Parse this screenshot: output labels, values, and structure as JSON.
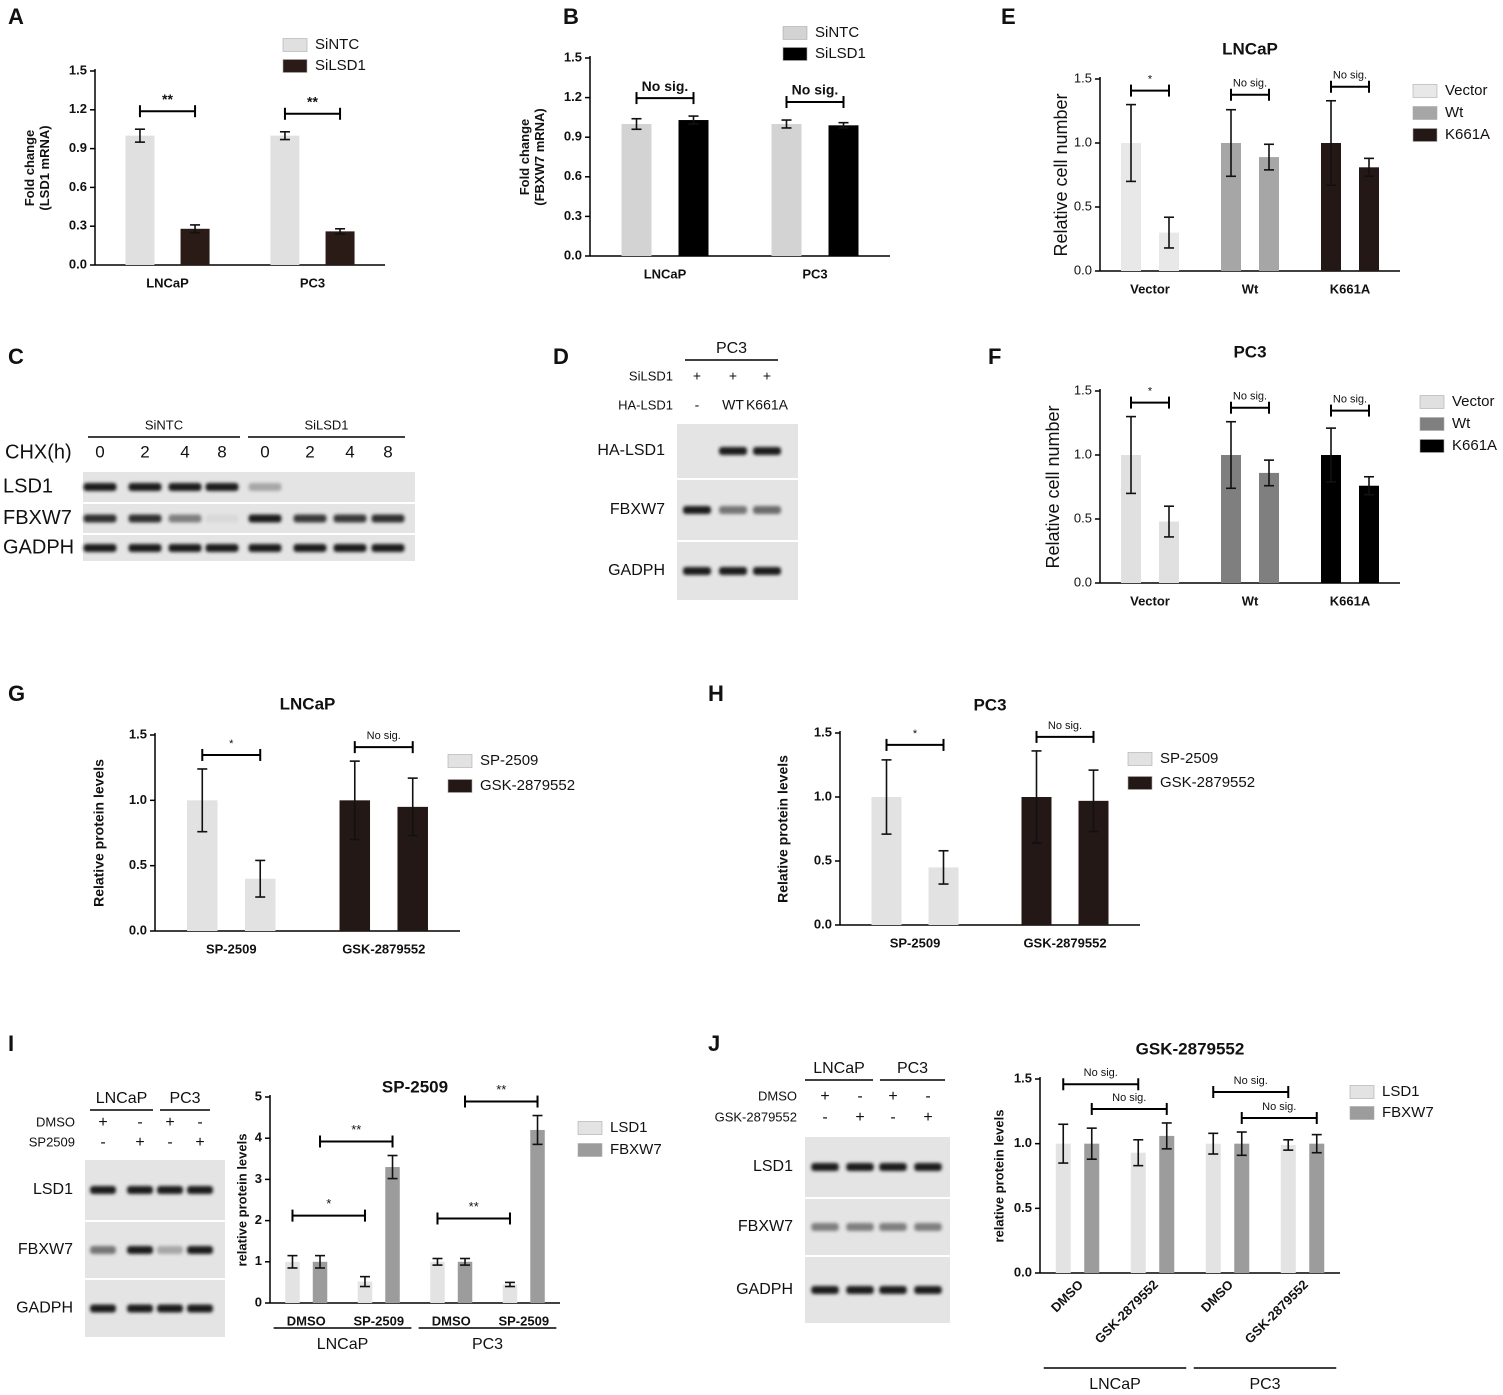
{
  "panel_letters": [
    "A",
    "B",
    "C",
    "D",
    "E",
    "F",
    "G",
    "H",
    "I",
    "J"
  ],
  "chart_data": [
    {
      "type": "bar",
      "y_label": [
        "Fold change",
        "(LSD1 mRNA)"
      ],
      "categories": [
        "LNCaP",
        "PC3"
      ],
      "series": [
        {
          "name": "SiNTC",
          "color": "#e0e0e0",
          "values": [
            1.0,
            1.0
          ],
          "errors": [
            0.05,
            0.03
          ]
        },
        {
          "name": "SiLSD1",
          "color": "#2b1b17",
          "values": [
            0.28,
            0.26
          ],
          "errors": [
            0.03,
            0.02
          ]
        }
      ],
      "ylim": [
        0,
        1.5
      ],
      "yticks": [
        {
          "value": 0,
          "label": "0.0"
        },
        0.3,
        0.6,
        0.9,
        1.2,
        1.5
      ],
      "significance": [
        "**",
        "**"
      ]
    },
    {
      "type": "bar",
      "y_label": [
        "Fold change",
        "(FBXW7 mRNA)"
      ],
      "categories": [
        "LNCaP",
        "PC3"
      ],
      "series": [
        {
          "name": "SiNTC",
          "color": "#d3d3d3",
          "values": [
            1.0,
            1.0
          ],
          "errors": [
            0.04,
            0.03
          ]
        },
        {
          "name": "SiLSD1",
          "color": "#000000",
          "values": [
            1.03,
            0.99
          ],
          "errors": [
            0.03,
            0.02
          ]
        }
      ],
      "ylim": [
        0,
        1.5
      ],
      "yticks": [
        {
          "value": 0,
          "label": "0.0"
        },
        0.3,
        0.6,
        0.9,
        1.2,
        1.5
      ],
      "significance": [
        "No sig.",
        "No sig."
      ]
    },
    {
      "type": "bar",
      "title": "LNCaP",
      "y_label": [
        "Relative cell number"
      ],
      "categories": [
        "Vector",
        "Wt",
        "K661A"
      ],
      "colors": [
        "#e8e8e8",
        "#a6a6a6",
        "#231815"
      ],
      "values": [
        [
          1.0,
          0.3
        ],
        [
          1.0,
          0.89
        ],
        [
          1.0,
          0.81
        ]
      ],
      "errors": [
        [
          0.3,
          0.12
        ],
        [
          0.26,
          0.1
        ],
        [
          0.33,
          0.07
        ]
      ],
      "ylim": [
        0,
        1.5
      ],
      "yticks": [
        {
          "value": 0,
          "label": "0.0"
        },
        0.5,
        {
          "value": 1,
          "label": "1.0"
        },
        1.5
      ],
      "significance": [
        "*",
        "No sig.",
        "No sig."
      ]
    },
    {
      "type": "bar",
      "title": "PC3",
      "y_label": [
        "Relative cell number"
      ],
      "categories": [
        "Vector",
        "Wt",
        "K661A"
      ],
      "colors": [
        "#e0e0e0",
        "#7f7f7f",
        "#000000"
      ],
      "values": [
        [
          1.0,
          0.48
        ],
        [
          1.0,
          0.86
        ],
        [
          1.0,
          0.76
        ]
      ],
      "errors": [
        [
          0.3,
          0.12
        ],
        [
          0.26,
          0.1
        ],
        [
          0.21,
          0.07
        ]
      ],
      "ylim": [
        0,
        1.5
      ],
      "yticks": [
        {
          "value": 0,
          "label": "0.0"
        },
        0.5,
        {
          "value": 1,
          "label": "1.0"
        },
        1.5
      ],
      "significance": [
        "*",
        "No sig.",
        "No sig."
      ]
    },
    {
      "type": "bar",
      "title": "LNCaP",
      "y_label": [
        "Relative protein levels"
      ],
      "categories": [
        "SP-2509",
        "GSK-2879552"
      ],
      "colors": [
        "#e2e2e2",
        "#231815"
      ],
      "values": [
        [
          1.0,
          0.4
        ],
        [
          1.0,
          0.95
        ]
      ],
      "errors": [
        [
          0.24,
          0.14
        ],
        [
          0.3,
          0.22
        ]
      ],
      "ylim": [
        0,
        1.5
      ],
      "yticks": [
        {
          "value": 0,
          "label": "0.0"
        },
        0.5,
        {
          "value": 1,
          "label": "1.0"
        },
        1.5
      ],
      "significance": [
        "*",
        "No sig."
      ]
    },
    {
      "type": "bar",
      "title": "PC3",
      "y_label": [
        "Relative protein levels"
      ],
      "categories": [
        "SP-2509",
        "GSK-2879552"
      ],
      "colors": [
        "#e2e2e2",
        "#231815"
      ],
      "values": [
        [
          1.0,
          0.45
        ],
        [
          1.0,
          0.97
        ]
      ],
      "errors": [
        [
          0.29,
          0.13
        ],
        [
          0.36,
          0.24
        ]
      ],
      "ylim": [
        0,
        1.5
      ],
      "yticks": [
        {
          "value": 0,
          "label": "0.0"
        },
        0.5,
        {
          "value": 1,
          "label": "1.0"
        },
        1.5
      ],
      "significance": [
        "*",
        "No sig."
      ]
    },
    {
      "type": "bar",
      "title": "SP-2509",
      "y_label": [
        "relative protein levels"
      ],
      "categories": [
        "DMSO",
        "SP-2509",
        "DMSO",
        "SP-2509"
      ],
      "groups": [
        "LNCaP",
        "PC3"
      ],
      "series": [
        {
          "name": "LSD1",
          "color": "#e3e3e3",
          "values": [
            1.0,
            0.52,
            1.0,
            0.45
          ],
          "errors": [
            0.15,
            0.12,
            0.08,
            0.05
          ]
        },
        {
          "name": "FBXW7",
          "color": "#9c9c9c",
          "values": [
            1.0,
            3.3,
            1.0,
            4.2
          ],
          "errors": [
            0.15,
            0.28,
            0.08,
            0.35
          ]
        }
      ],
      "ylim": [
        0,
        5
      ],
      "yticks": [
        0,
        1,
        2,
        3,
        4,
        5
      ],
      "significance": [
        [
          "*",
          "**"
        ],
        [
          "**",
          "**"
        ]
      ]
    },
    {
      "type": "bar",
      "title": "GSK-2879552",
      "y_label": [
        "relative protein levels"
      ],
      "categories": [
        "DMSO",
        "GSK-2879552",
        "DMSO",
        "GSK-2879552"
      ],
      "groups": [
        "LNCaP",
        "PC3"
      ],
      "series": [
        {
          "name": "LSD1",
          "color": "#e3e3e3",
          "values": [
            1.0,
            0.93,
            1.0,
            0.99
          ],
          "errors": [
            0.15,
            0.1,
            0.08,
            0.04
          ]
        },
        {
          "name": "FBXW7",
          "color": "#9c9c9c",
          "values": [
            1.0,
            1.06,
            1.0,
            1.0
          ],
          "errors": [
            0.12,
            0.1,
            0.09,
            0.07
          ]
        }
      ],
      "ylim": [
        0,
        1.5
      ],
      "yticks": [
        {
          "value": 0,
          "label": "0.0"
        },
        0.5,
        {
          "value": 1,
          "label": "1.0"
        },
        1.5
      ],
      "significance": [
        [
          "No sig.",
          "No sig."
        ],
        [
          "No sig.",
          "No sig."
        ]
      ]
    }
  ],
  "blots": [
    {
      "groups": [
        "SiNTC",
        "SiLSD1"
      ],
      "conditions": [
        {
          "label": "CHX(h)",
          "values": [
            0,
            2,
            4,
            8,
            0,
            2,
            4,
            8
          ]
        }
      ],
      "rows": [
        "LSD1",
        "FBXW7",
        "GADPH"
      ]
    },
    {
      "groups": [
        "PC3"
      ],
      "conditions": [
        {
          "label": "SiLSD1",
          "values": [
            "+",
            "+",
            "+"
          ]
        },
        {
          "label": "HA-LSD1",
          "values": [
            "-",
            "WT",
            "K661A"
          ]
        }
      ],
      "rows": [
        "HA-LSD1",
        "FBXW7",
        "GADPH"
      ]
    },
    {
      "groups": [
        "LNCaP",
        "PC3"
      ],
      "conditions": [
        {
          "label": "DMSO",
          "values": [
            "+",
            "-",
            "+",
            "-"
          ]
        },
        {
          "label": "SP2509",
          "values": [
            "-",
            "+",
            "-",
            "+"
          ]
        }
      ],
      "rows": [
        "LSD1",
        "FBXW7",
        "GADPH"
      ]
    },
    {
      "groups": [
        "LNCaP",
        "PC3"
      ],
      "conditions": [
        {
          "label": "DMSO",
          "values": [
            "+",
            "-",
            "+",
            "-"
          ]
        },
        {
          "label": "GSK-2879552",
          "values": [
            "-",
            "+",
            "-",
            "+"
          ]
        }
      ],
      "rows": [
        "LSD1",
        "FBXW7",
        "GADPH"
      ]
    }
  ]
}
